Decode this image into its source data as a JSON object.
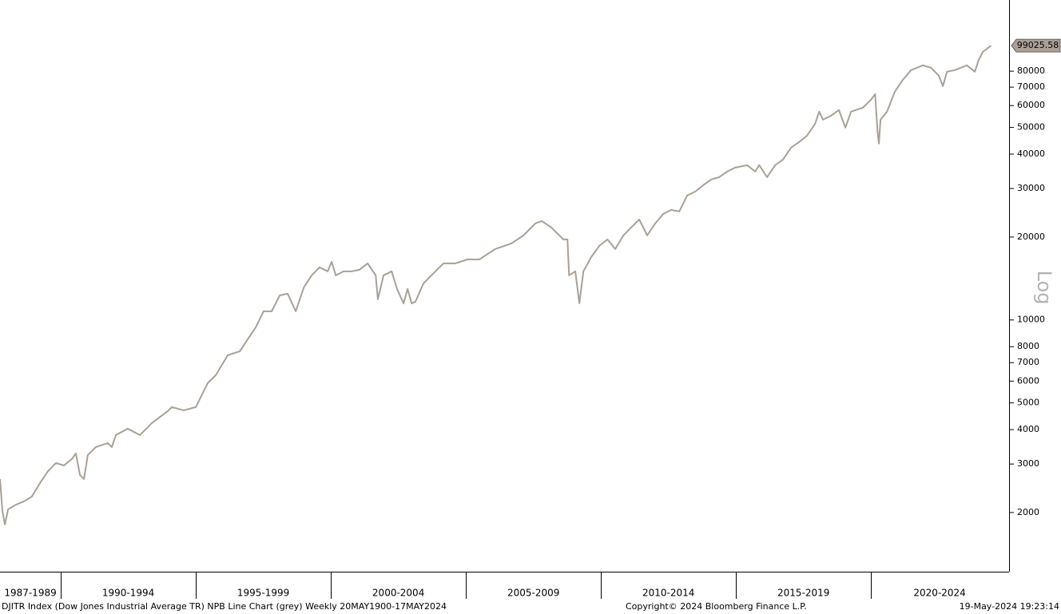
{
  "chart_data": {
    "type": "line",
    "log_scale": true,
    "scale_label": "Log",
    "color": "#aaa095",
    "xlim": [
      1987.75,
      2025.08
    ],
    "xticks": [
      1990,
      1995,
      2000,
      2005,
      2010,
      2015,
      2020
    ],
    "x_group_labels": [
      "1987-1989",
      "1990-1994",
      "1995-1999",
      "2000-2004",
      "2005-2009",
      "2010-2014",
      "2015-2019",
      "2020-2024"
    ],
    "ylim": [
      1220,
      145000
    ],
    "yticks": [
      2000,
      3000,
      4000,
      5000,
      6000,
      7000,
      8000,
      10000,
      20000,
      30000,
      40000,
      50000,
      60000,
      70000,
      80000
    ],
    "x": [
      1987.75,
      1987.84,
      1987.93,
      1988.05,
      1988.34,
      1988.64,
      1988.93,
      1989.23,
      1989.53,
      1989.82,
      1990.12,
      1990.41,
      1990.56,
      1990.71,
      1990.86,
      1991.0,
      1991.3,
      1991.74,
      1991.89,
      1992.04,
      1992.48,
      1992.93,
      1993.37,
      1993.96,
      1994.11,
      1994.55,
      1995.0,
      1995.44,
      1995.74,
      1996.18,
      1996.63,
      1996.92,
      1997.22,
      1997.51,
      1997.81,
      1998.11,
      1998.4,
      1998.7,
      1999.0,
      1999.29,
      1999.58,
      1999.88,
      2000.03,
      2000.18,
      2000.47,
      2000.77,
      2001.06,
      2001.36,
      2001.66,
      2001.74,
      2001.95,
      2002.25,
      2002.45,
      2002.69,
      2002.84,
      2002.99,
      2003.13,
      2003.43,
      2003.87,
      2004.17,
      2004.61,
      2005.06,
      2005.5,
      2006.09,
      2006.69,
      2007.13,
      2007.57,
      2007.81,
      2008.16,
      2008.46,
      2008.61,
      2008.76,
      2008.82,
      2009.05,
      2009.2,
      2009.35,
      2009.64,
      2009.94,
      2010.24,
      2010.53,
      2010.83,
      2011.12,
      2011.42,
      2011.71,
      2012.01,
      2012.31,
      2012.6,
      2012.9,
      2013.19,
      2013.49,
      2013.79,
      2014.08,
      2014.38,
      2014.67,
      2014.97,
      2015.41,
      2015.71,
      2015.86,
      2016.15,
      2016.45,
      2016.74,
      2017.04,
      2017.34,
      2017.63,
      2017.93,
      2018.08,
      2018.22,
      2018.52,
      2018.81,
      2019.05,
      2019.26,
      2019.7,
      2020.0,
      2020.15,
      2020.24,
      2020.29,
      2020.35,
      2020.59,
      2020.88,
      2021.18,
      2021.48,
      2021.92,
      2022.22,
      2022.51,
      2022.66,
      2022.81,
      2023.1,
      2023.55,
      2023.84,
      2023.99,
      2024.14,
      2024.44
    ],
    "values": [
      2646,
      2027,
      1810,
      2054,
      2136,
      2196,
      2286,
      2560,
      2830,
      3024,
      2965,
      3128,
      3277,
      2738,
      2646,
      3234,
      3458,
      3574,
      3458,
      3821,
      4030,
      3821,
      4223,
      4668,
      4827,
      4699,
      4827,
      5897,
      6304,
      7449,
      7700,
      8511,
      9406,
      10752,
      10752,
      12289,
      12455,
      10752,
      13136,
      14522,
      15525,
      15015,
      16262,
      14522,
      15015,
      15015,
      15216,
      16040,
      14522,
      11883,
      14522,
      15015,
      12962,
      11490,
      12962,
      11490,
      11645,
      13580,
      15015,
      16040,
      16040,
      16590,
      16590,
      18099,
      18963,
      20270,
      22404,
      22857,
      21668,
      20270,
      19600,
      19600,
      14522,
      15015,
      11490,
      15015,
      16925,
      18580,
      19600,
      18099,
      20270,
      21668,
      23160,
      20270,
      22404,
      24278,
      25090,
      24760,
      28290,
      29250,
      30860,
      32340,
      32990,
      34560,
      35740,
      36470,
      34560,
      36470,
      32990,
      36470,
      38210,
      42230,
      44270,
      46680,
      51600,
      57040,
      53350,
      55160,
      57810,
      49910,
      57040,
      58980,
      63060,
      66060,
      48270,
      43690,
      53350,
      57040,
      67400,
      74480,
      80710,
      84000,
      82330,
      77000,
      70600,
      79620,
      80710,
      84000,
      79620,
      88000,
      94060,
      99025.58
    ],
    "footer_left": "DJITR Index (Dow Jones Industrial Average TR) NPB Line Chart (grey)  Weekly 20MAY1900-17MAY2024",
    "copyright": "Copyright© 2024 Bloomberg Finance L.P.",
    "timestamp": "19-May-2024 19:23:14"
  }
}
